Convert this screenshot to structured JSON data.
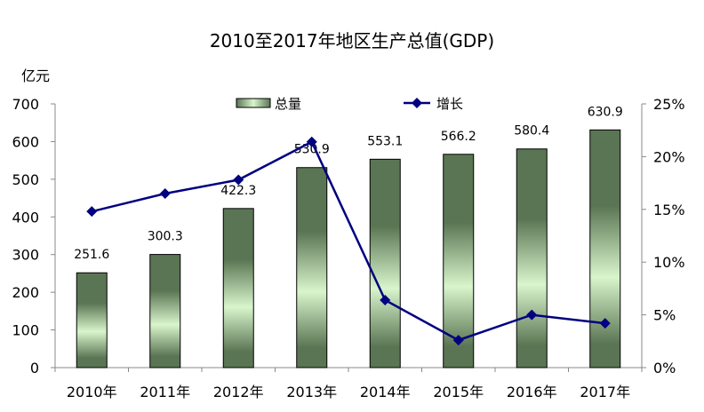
{
  "chart_data": {
    "type": "bar",
    "title": "2010至2017年地区生产总值(GDP)",
    "ylabel": "亿元",
    "categories": [
      "2010年",
      "2011年",
      "2012年",
      "2013年",
      "2014年",
      "2015年",
      "2016年",
      "2017年"
    ],
    "series": [
      {
        "name": "总量",
        "type": "bar",
        "axis": "left",
        "values": [
          251.6,
          300.3,
          422.3,
          530.9,
          553.1,
          566.2,
          580.4,
          630.9
        ],
        "labels": [
          "251.6",
          "300.3",
          "422.3",
          "530.9",
          "553.1",
          "566.2",
          "580.4",
          "630.9"
        ]
      },
      {
        "name": "增长",
        "type": "line",
        "axis": "right",
        "values": [
          14.8,
          16.5,
          17.8,
          21.4,
          6.4,
          2.6,
          5.0,
          4.2
        ]
      }
    ],
    "ylim": [
      0,
      700
    ],
    "yticks": [
      "0",
      "100",
      "200",
      "300",
      "400",
      "500",
      "600",
      "700"
    ],
    "y2lim": [
      0,
      25
    ],
    "y2ticks": [
      "0%",
      "5%",
      "10%",
      "15%",
      "20%",
      "25%"
    ],
    "legend": "top",
    "grid": false,
    "colors": {
      "bar_dark": "#5a7553",
      "bar_light": "#d8f5cc",
      "line": "#000080"
    }
  }
}
